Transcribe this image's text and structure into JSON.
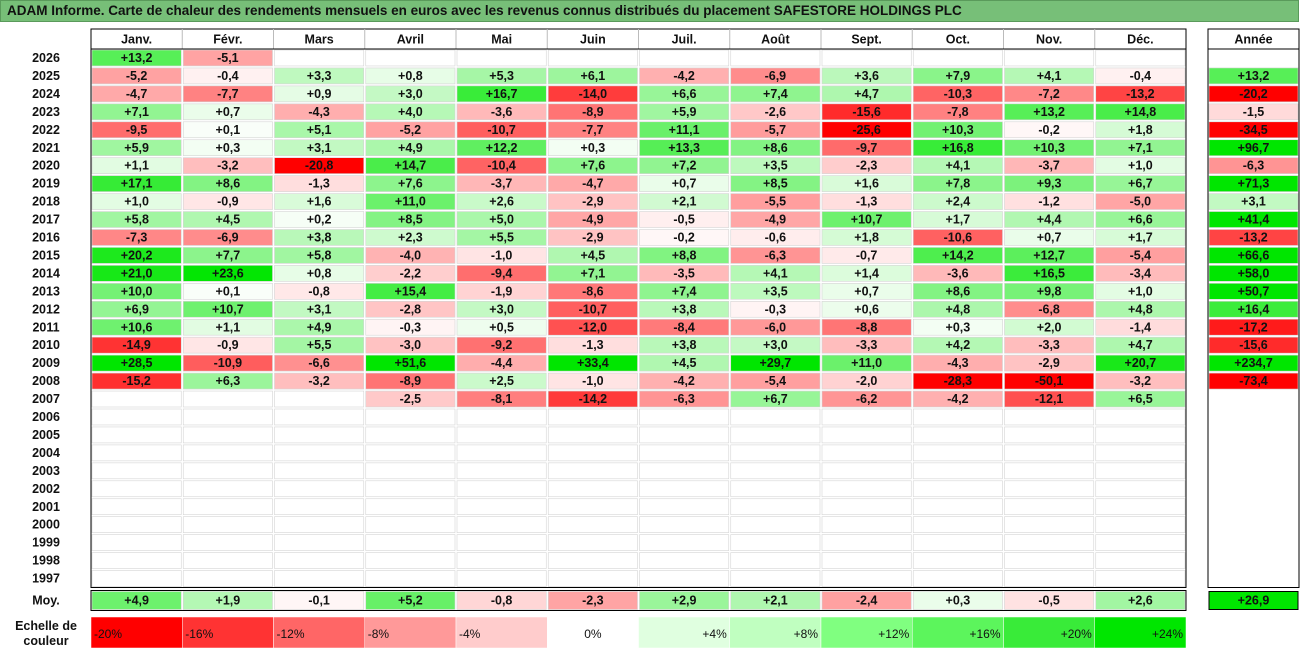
{
  "title": "ADAM Informe. Carte de chaleur des rendements mensuels en euros avec les revenus connus distribués du placement SAFESTORE HOLDINGS PLC",
  "chart_data": {
    "type": "heatmap",
    "months": [
      "Janv.",
      "Févr.",
      "Mars",
      "Avril",
      "Mai",
      "Juin",
      "Juil.",
      "Août",
      "Sept.",
      "Oct.",
      "Nov.",
      "Déc."
    ],
    "year_header": "Année",
    "rows": [
      {
        "year": "2026",
        "months": [
          "+13,2",
          "-5,1",
          "",
          "",
          "",
          "",
          "",
          "",
          "",
          "",
          "",
          ""
        ],
        "annual": ""
      },
      {
        "year": "2025",
        "months": [
          "-5,2",
          "-0,4",
          "+3,3",
          "+0,8",
          "+5,3",
          "+6,1",
          "-4,2",
          "-6,9",
          "+3,6",
          "+7,9",
          "+4,1",
          "-0,4"
        ],
        "annual": "+13,2"
      },
      {
        "year": "2024",
        "months": [
          "-4,7",
          "-7,7",
          "+0,9",
          "+3,0",
          "+16,7",
          "-14,0",
          "+6,6",
          "+7,4",
          "+4,7",
          "-10,3",
          "-7,2",
          "-13,2"
        ],
        "annual": "-20,2"
      },
      {
        "year": "2023",
        "months": [
          "+7,1",
          "+0,7",
          "-4,3",
          "+4,0",
          "-3,6",
          "-8,9",
          "+5,9",
          "-2,6",
          "-15,6",
          "-7,8",
          "+13,2",
          "+14,8"
        ],
        "annual": "-1,5"
      },
      {
        "year": "2022",
        "months": [
          "-9,5",
          "+0,1",
          "+5,1",
          "-5,2",
          "-10,7",
          "-7,7",
          "+11,1",
          "-5,7",
          "-25,6",
          "+10,3",
          "-0,2",
          "+1,8"
        ],
        "annual": "-34,5"
      },
      {
        "year": "2021",
        "months": [
          "+5,9",
          "+0,3",
          "+3,1",
          "+4,9",
          "+12,2",
          "+0,3",
          "+13,3",
          "+8,6",
          "-9,7",
          "+16,8",
          "+10,3",
          "+7,1"
        ],
        "annual": "+96,7"
      },
      {
        "year": "2020",
        "months": [
          "+1,1",
          "-3,2",
          "-20,8",
          "+14,7",
          "-10,4",
          "+7,6",
          "+7,2",
          "+3,5",
          "-2,3",
          "+4,1",
          "-3,7",
          "+1,0"
        ],
        "annual": "-6,3"
      },
      {
        "year": "2019",
        "months": [
          "+17,1",
          "+8,6",
          "-1,3",
          "+7,6",
          "-3,7",
          "-4,7",
          "+0,7",
          "+8,5",
          "+1,6",
          "+7,8",
          "+9,3",
          "+6,7"
        ],
        "annual": "+71,3"
      },
      {
        "year": "2018",
        "months": [
          "+1,0",
          "-0,9",
          "+1,6",
          "+11,0",
          "+2,6",
          "-2,9",
          "+2,1",
          "-5,5",
          "-1,3",
          "+2,4",
          "-1,2",
          "-5,0"
        ],
        "annual": "+3,1"
      },
      {
        "year": "2017",
        "months": [
          "+5,8",
          "+4,5",
          "+0,2",
          "+8,5",
          "+5,0",
          "-4,9",
          "-0,5",
          "-4,9",
          "+10,7",
          "+1,7",
          "+4,4",
          "+6,6"
        ],
        "annual": "+41,4"
      },
      {
        "year": "2016",
        "months": [
          "-7,3",
          "-6,9",
          "+3,8",
          "+2,3",
          "+5,5",
          "-2,9",
          "-0,2",
          "-0,6",
          "+1,8",
          "-10,6",
          "+0,7",
          "+1,7"
        ],
        "annual": "-13,2"
      },
      {
        "year": "2015",
        "months": [
          "+20,2",
          "+7,7",
          "+5,8",
          "-4,0",
          "-1,0",
          "+4,5",
          "+8,8",
          "-6,3",
          "-0,7",
          "+14,2",
          "+12,7",
          "-5,4"
        ],
        "annual": "+66,6"
      },
      {
        "year": "2014",
        "months": [
          "+21,0",
          "+23,6",
          "+0,8",
          "-2,2",
          "-9,4",
          "+7,1",
          "-3,5",
          "+4,1",
          "+1,4",
          "-3,6",
          "+16,5",
          "-3,4"
        ],
        "annual": "+58,0"
      },
      {
        "year": "2013",
        "months": [
          "+10,0",
          "+0,1",
          "-0,8",
          "+15,4",
          "-1,9",
          "-8,6",
          "+7,4",
          "+3,5",
          "+0,7",
          "+8,6",
          "+9,8",
          "+1,0"
        ],
        "annual": "+50,7"
      },
      {
        "year": "2012",
        "months": [
          "+6,9",
          "+10,7",
          "+3,1",
          "-2,8",
          "+3,0",
          "-10,7",
          "+3,8",
          "-0,3",
          "+0,6",
          "+4,8",
          "-6,8",
          "+4,8"
        ],
        "annual": "+16,4"
      },
      {
        "year": "2011",
        "months": [
          "+10,6",
          "+1,1",
          "+4,9",
          "-0,3",
          "+0,5",
          "-12,0",
          "-8,4",
          "-6,0",
          "-8,8",
          "+0,3",
          "+2,0",
          "-1,4"
        ],
        "annual": "-17,2"
      },
      {
        "year": "2010",
        "months": [
          "-14,9",
          "-0,9",
          "+5,5",
          "-3,0",
          "-9,2",
          "-1,3",
          "+3,8",
          "+3,0",
          "-3,3",
          "+4,2",
          "-3,3",
          "+4,7"
        ],
        "annual": "-15,6"
      },
      {
        "year": "2009",
        "months": [
          "+28,5",
          "-10,9",
          "-6,6",
          "+51,6",
          "-4,4",
          "+33,4",
          "+4,5",
          "+29,7",
          "+11,0",
          "-4,3",
          "-2,9",
          "+20,7"
        ],
        "annual": "+234,7"
      },
      {
        "year": "2008",
        "months": [
          "-15,2",
          "+6,3",
          "-3,2",
          "-8,9",
          "+2,5",
          "-1,0",
          "-4,2",
          "-5,4",
          "-2,0",
          "-28,3",
          "-50,1",
          "-3,2"
        ],
        "annual": "-73,4"
      },
      {
        "year": "2007",
        "months": [
          "",
          "",
          "",
          "-2,5",
          "-8,1",
          "-14,2",
          "-6,3",
          "+6,7",
          "-6,2",
          "-4,2",
          "-12,1",
          "+6,5"
        ],
        "annual": ""
      },
      {
        "year": "2006",
        "months": [
          "",
          "",
          "",
          "",
          "",
          "",
          "",
          "",
          "",
          "",
          "",
          ""
        ],
        "annual": ""
      },
      {
        "year": "2005",
        "months": [
          "",
          "",
          "",
          "",
          "",
          "",
          "",
          "",
          "",
          "",
          "",
          ""
        ],
        "annual": ""
      },
      {
        "year": "2004",
        "months": [
          "",
          "",
          "",
          "",
          "",
          "",
          "",
          "",
          "",
          "",
          "",
          ""
        ],
        "annual": ""
      },
      {
        "year": "2003",
        "months": [
          "",
          "",
          "",
          "",
          "",
          "",
          "",
          "",
          "",
          "",
          "",
          ""
        ],
        "annual": ""
      },
      {
        "year": "2002",
        "months": [
          "",
          "",
          "",
          "",
          "",
          "",
          "",
          "",
          "",
          "",
          "",
          ""
        ],
        "annual": ""
      },
      {
        "year": "2001",
        "months": [
          "",
          "",
          "",
          "",
          "",
          "",
          "",
          "",
          "",
          "",
          "",
          ""
        ],
        "annual": ""
      },
      {
        "year": "2000",
        "months": [
          "",
          "",
          "",
          "",
          "",
          "",
          "",
          "",
          "",
          "",
          "",
          ""
        ],
        "annual": ""
      },
      {
        "year": "1999",
        "months": [
          "",
          "",
          "",
          "",
          "",
          "",
          "",
          "",
          "",
          "",
          "",
          ""
        ],
        "annual": ""
      },
      {
        "year": "1998",
        "months": [
          "",
          "",
          "",
          "",
          "",
          "",
          "",
          "",
          "",
          "",
          "",
          ""
        ],
        "annual": ""
      },
      {
        "year": "1997",
        "months": [
          "",
          "",
          "",
          "",
          "",
          "",
          "",
          "",
          "",
          "",
          "",
          ""
        ],
        "annual": ""
      }
    ],
    "average": {
      "label": "Moy.",
      "months": [
        "+4,9",
        "+1,9",
        "-0,1",
        "+5,2",
        "-0,8",
        "-2,3",
        "+2,9",
        "+2,1",
        "-2,4",
        "+0,3",
        "-0,5",
        "+2,6"
      ],
      "annual": "+26,9"
    },
    "color_scale": {
      "label": "Echelle de couleur",
      "stops": [
        "-20%",
        "-16%",
        "-12%",
        "-8%",
        "-4%",
        "0%",
        "+4%",
        "+8%",
        "+12%",
        "+16%",
        "+20%",
        "+24%"
      ],
      "colors": [
        "#ff0000",
        "#ff3333",
        "#ff6666",
        "#ff9999",
        "#ffcccc",
        "#ffffff",
        "#e0ffe0",
        "#c0ffc0",
        "#80ff80",
        "#5cf55c",
        "#39eb39",
        "#00e600"
      ]
    },
    "colors": {
      "negative_max": "#ff0000",
      "neutral": "#ffffff",
      "positive_max": "#00e600",
      "title_bar": "#77bf78"
    }
  }
}
